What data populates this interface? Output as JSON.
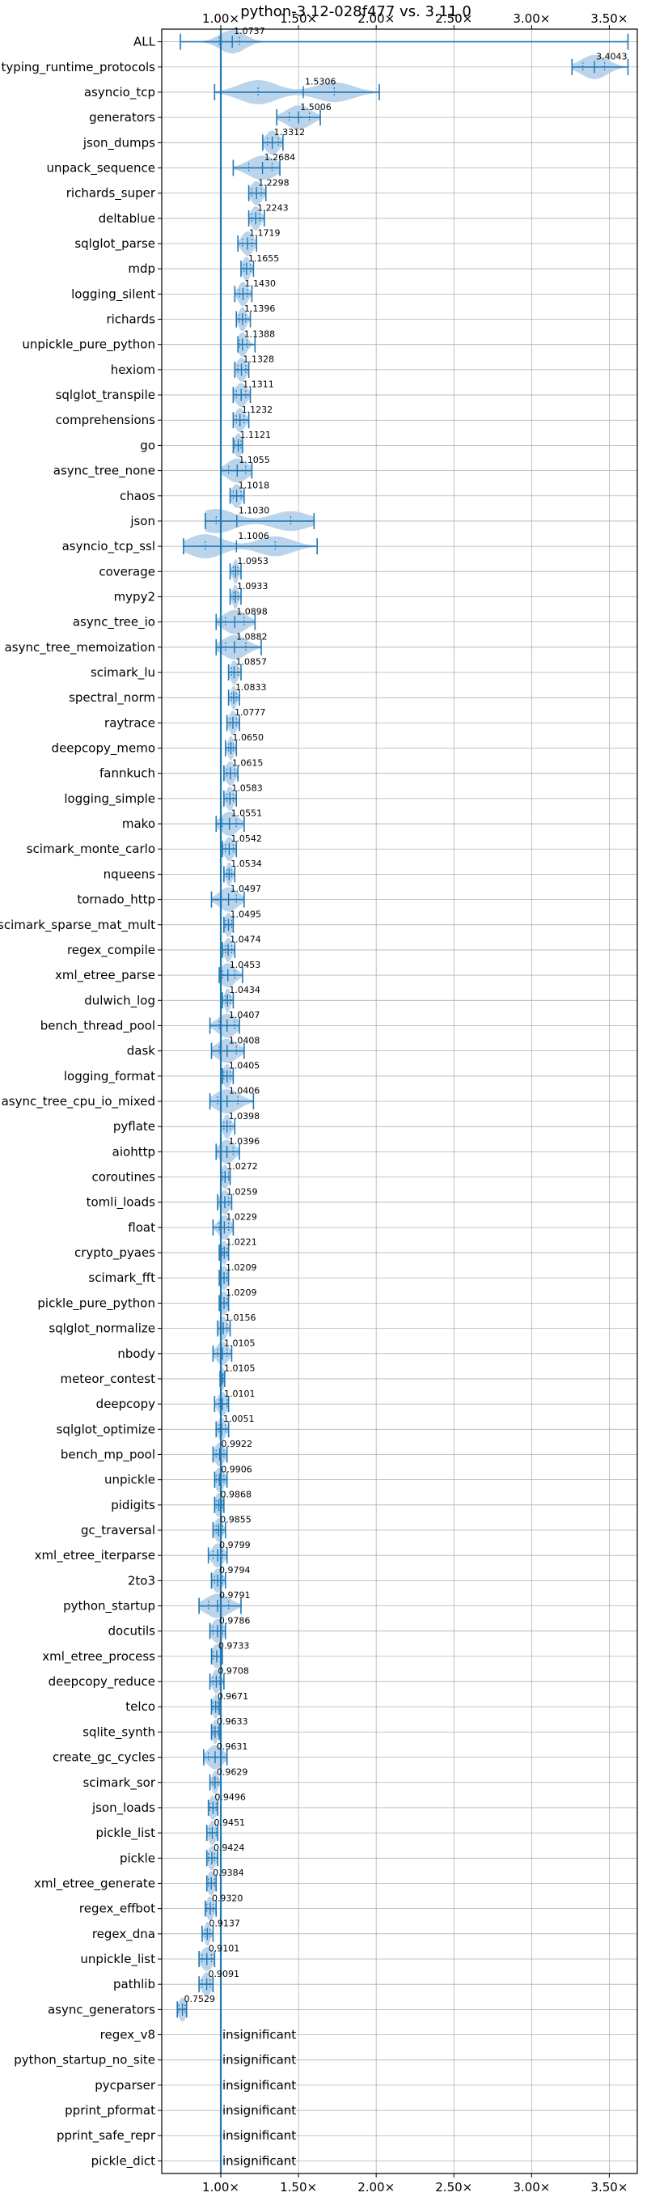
{
  "chart_data": {
    "type": "violin",
    "title": "python-3.12-028f477 vs. 3.11.0",
    "xlim": [
      0.62,
      3.68
    ],
    "x_ticks": [
      1.0,
      1.5,
      2.0,
      2.5,
      3.0,
      3.5
    ],
    "x_tick_labels": [
      "1.00×",
      "1.50×",
      "2.00×",
      "2.50×",
      "3.00×",
      "3.50×"
    ],
    "reference_x": 1.0,
    "grid": true,
    "insignificant_text": "insignificant",
    "color": "#1f77b4",
    "fill_color": "#aecde8",
    "benchmarks": [
      {
        "name": "ALL",
        "value": 1.0737,
        "label": "1.0737",
        "min": 0.74,
        "max": 3.62,
        "q1": 0.99,
        "q3": 1.12,
        "spread": 0.1
      },
      {
        "name": "typing_runtime_protocols",
        "value": 3.4043,
        "label": "3.4043",
        "min": 3.26,
        "max": 3.62,
        "q1": 3.33,
        "q3": 3.47,
        "spread": 0.1
      },
      {
        "name": "asyncio_tcp",
        "value": 1.5306,
        "label": "1.5306",
        "min": 0.96,
        "max": 2.02,
        "q1": 1.24,
        "q3": 1.73,
        "spread": 0.28
      },
      {
        "name": "generators",
        "value": 1.5006,
        "label": "1.5006",
        "min": 1.36,
        "max": 1.64,
        "q1": 1.44,
        "q3": 1.57,
        "spread": 0.1
      },
      {
        "name": "json_dumps",
        "value": 1.3312,
        "label": "1.3312",
        "min": 1.27,
        "max": 1.4,
        "q1": 1.3,
        "q3": 1.37,
        "spread": 0.06
      },
      {
        "name": "unpack_sequence",
        "value": 1.2684,
        "label": "1.2684",
        "min": 1.08,
        "max": 1.38,
        "q1": 1.18,
        "q3": 1.33,
        "spread": 0.12
      },
      {
        "name": "richards_super",
        "value": 1.2298,
        "label": "1.2298",
        "min": 1.18,
        "max": 1.29,
        "q1": 1.2,
        "q3": 1.26,
        "spread": 0.05
      },
      {
        "name": "deltablue",
        "value": 1.2243,
        "label": "1.2243",
        "min": 1.18,
        "max": 1.28,
        "q1": 1.2,
        "q3": 1.25,
        "spread": 0.05
      },
      {
        "name": "sqlglot_parse",
        "value": 1.1719,
        "label": "1.1719",
        "min": 1.11,
        "max": 1.23,
        "q1": 1.14,
        "q3": 1.2,
        "spread": 0.05
      },
      {
        "name": "mdp",
        "value": 1.1655,
        "label": "1.1655",
        "min": 1.13,
        "max": 1.21,
        "q1": 1.15,
        "q3": 1.19,
        "spread": 0.04
      },
      {
        "name": "logging_silent",
        "value": 1.143,
        "label": "1.1430",
        "min": 1.09,
        "max": 1.2,
        "q1": 1.12,
        "q3": 1.17,
        "spread": 0.05
      },
      {
        "name": "richards",
        "value": 1.1396,
        "label": "1.1396",
        "min": 1.1,
        "max": 1.19,
        "q1": 1.12,
        "q3": 1.16,
        "spread": 0.04
      },
      {
        "name": "unpickle_pure_python",
        "value": 1.1388,
        "label": "1.1388",
        "min": 1.11,
        "max": 1.22,
        "q1": 1.12,
        "q3": 1.17,
        "spread": 0.04
      },
      {
        "name": "hexiom",
        "value": 1.1328,
        "label": "1.1328",
        "min": 1.09,
        "max": 1.18,
        "q1": 1.11,
        "q3": 1.16,
        "spread": 0.04
      },
      {
        "name": "sqlglot_transpile",
        "value": 1.1311,
        "label": "1.1311",
        "min": 1.08,
        "max": 1.19,
        "q1": 1.1,
        "q3": 1.16,
        "spread": 0.05
      },
      {
        "name": "comprehensions",
        "value": 1.1232,
        "label": "1.1232",
        "min": 1.08,
        "max": 1.18,
        "q1": 1.1,
        "q3": 1.15,
        "spread": 0.04
      },
      {
        "name": "go",
        "value": 1.1121,
        "label": "1.1121",
        "min": 1.08,
        "max": 1.14,
        "q1": 1.09,
        "q3": 1.13,
        "spread": 0.03
      },
      {
        "name": "async_tree_none",
        "value": 1.1055,
        "label": "1.1055",
        "min": 1.0,
        "max": 1.2,
        "q1": 1.05,
        "q3": 1.16,
        "spread": 0.08
      },
      {
        "name": "chaos",
        "value": 1.1018,
        "label": "1.1018",
        "min": 1.06,
        "max": 1.15,
        "q1": 1.08,
        "q3": 1.13,
        "spread": 0.04
      },
      {
        "name": "json",
        "value": 1.103,
        "label": "1.1030",
        "min": 0.9,
        "max": 1.6,
        "q1": 0.97,
        "q3": 1.45,
        "spread": 0.14
      },
      {
        "name": "asyncio_tcp_ssl",
        "value": 1.1006,
        "label": "1.1006",
        "min": 0.76,
        "max": 1.62,
        "q1": 0.9,
        "q3": 1.35,
        "spread": 0.22
      },
      {
        "name": "coverage",
        "value": 1.0953,
        "label": "1.0953",
        "min": 1.06,
        "max": 1.13,
        "q1": 1.08,
        "q3": 1.11,
        "spread": 0.03
      },
      {
        "name": "mypy2",
        "value": 1.0933,
        "label": "1.0933",
        "min": 1.06,
        "max": 1.13,
        "q1": 1.08,
        "q3": 1.11,
        "spread": 0.03
      },
      {
        "name": "async_tree_io",
        "value": 1.0898,
        "label": "1.0898",
        "min": 0.97,
        "max": 1.22,
        "q1": 1.03,
        "q3": 1.15,
        "spread": 0.08
      },
      {
        "name": "async_tree_memoization",
        "value": 1.0882,
        "label": "1.0882",
        "min": 0.97,
        "max": 1.26,
        "q1": 1.03,
        "q3": 1.16,
        "spread": 0.09
      },
      {
        "name": "scimark_lu",
        "value": 1.0857,
        "label": "1.0857",
        "min": 1.05,
        "max": 1.13,
        "q1": 1.07,
        "q3": 1.11,
        "spread": 0.03
      },
      {
        "name": "spectral_norm",
        "value": 1.0833,
        "label": "1.0833",
        "min": 1.05,
        "max": 1.12,
        "q1": 1.07,
        "q3": 1.1,
        "spread": 0.03
      },
      {
        "name": "raytrace",
        "value": 1.0777,
        "label": "1.0777",
        "min": 1.04,
        "max": 1.12,
        "q1": 1.06,
        "q3": 1.1,
        "spread": 0.03
      },
      {
        "name": "deepcopy_memo",
        "value": 1.065,
        "label": "1.0650",
        "min": 1.03,
        "max": 1.1,
        "q1": 1.05,
        "q3": 1.08,
        "spread": 0.03
      },
      {
        "name": "fannkuch",
        "value": 1.0615,
        "label": "1.0615",
        "min": 1.02,
        "max": 1.11,
        "q1": 1.04,
        "q3": 1.09,
        "spread": 0.03
      },
      {
        "name": "logging_simple",
        "value": 1.0583,
        "label": "1.0583",
        "min": 1.02,
        "max": 1.1,
        "q1": 1.04,
        "q3": 1.08,
        "spread": 0.03
      },
      {
        "name": "mako",
        "value": 1.0551,
        "label": "1.0551",
        "min": 0.97,
        "max": 1.15,
        "q1": 1.01,
        "q3": 1.1,
        "spread": 0.06
      },
      {
        "name": "scimark_monte_carlo",
        "value": 1.0542,
        "label": "1.0542",
        "min": 1.01,
        "max": 1.1,
        "q1": 1.03,
        "q3": 1.08,
        "spread": 0.04
      },
      {
        "name": "nqueens",
        "value": 1.0534,
        "label": "1.0534",
        "min": 1.02,
        "max": 1.09,
        "q1": 1.04,
        "q3": 1.07,
        "spread": 0.03
      },
      {
        "name": "tornado_http",
        "value": 1.0497,
        "label": "1.0497",
        "min": 0.94,
        "max": 1.15,
        "q1": 1.0,
        "q3": 1.1,
        "spread": 0.06
      },
      {
        "name": "scimark_sparse_mat_mult",
        "value": 1.0495,
        "label": "1.0495",
        "min": 1.02,
        "max": 1.08,
        "q1": 1.03,
        "q3": 1.07,
        "spread": 0.03
      },
      {
        "name": "regex_compile",
        "value": 1.0474,
        "label": "1.0474",
        "min": 1.01,
        "max": 1.09,
        "q1": 1.03,
        "q3": 1.07,
        "spread": 0.03
      },
      {
        "name": "xml_etree_parse",
        "value": 1.0453,
        "label": "1.0453",
        "min": 0.99,
        "max": 1.14,
        "q1": 1.01,
        "q3": 1.09,
        "spread": 0.05
      },
      {
        "name": "dulwich_log",
        "value": 1.0434,
        "label": "1.0434",
        "min": 1.01,
        "max": 1.08,
        "q1": 1.03,
        "q3": 1.06,
        "spread": 0.03
      },
      {
        "name": "bench_thread_pool",
        "value": 1.0407,
        "label": "1.0407",
        "min": 0.93,
        "max": 1.12,
        "q1": 0.99,
        "q3": 1.09,
        "spread": 0.05
      },
      {
        "name": "dask",
        "value": 1.0408,
        "label": "1.0408",
        "min": 0.94,
        "max": 1.15,
        "q1": 0.99,
        "q3": 1.1,
        "spread": 0.06
      },
      {
        "name": "logging_format",
        "value": 1.0405,
        "label": "1.0405",
        "min": 1.01,
        "max": 1.08,
        "q1": 1.02,
        "q3": 1.06,
        "spread": 0.03
      },
      {
        "name": "async_tree_cpu_io_mixed",
        "value": 1.0406,
        "label": "1.0406",
        "min": 0.93,
        "max": 1.21,
        "q1": 0.98,
        "q3": 1.11,
        "spread": 0.07
      },
      {
        "name": "pyflate",
        "value": 1.0398,
        "label": "1.0398",
        "min": 1.0,
        "max": 1.09,
        "q1": 1.02,
        "q3": 1.06,
        "spread": 0.04
      },
      {
        "name": "aiohttp",
        "value": 1.0396,
        "label": "1.0396",
        "min": 0.97,
        "max": 1.12,
        "q1": 1.0,
        "q3": 1.08,
        "spread": 0.05
      },
      {
        "name": "coroutines",
        "value": 1.0272,
        "label": "1.0272",
        "min": 1.0,
        "max": 1.06,
        "q1": 1.01,
        "q3": 1.05,
        "spread": 0.03
      },
      {
        "name": "tomli_loads",
        "value": 1.0259,
        "label": "1.0259",
        "min": 0.98,
        "max": 1.07,
        "q1": 1.0,
        "q3": 1.05,
        "spread": 0.04
      },
      {
        "name": "float",
        "value": 1.0229,
        "label": "1.0229",
        "min": 0.95,
        "max": 1.08,
        "q1": 0.99,
        "q3": 1.05,
        "spread": 0.04
      },
      {
        "name": "crypto_pyaes",
        "value": 1.0221,
        "label": "1.0221",
        "min": 0.99,
        "max": 1.05,
        "q1": 1.01,
        "q3": 1.04,
        "spread": 0.02
      },
      {
        "name": "scimark_fft",
        "value": 1.0209,
        "label": "1.0209",
        "min": 0.99,
        "max": 1.05,
        "q1": 1.0,
        "q3": 1.04,
        "spread": 0.02
      },
      {
        "name": "pickle_pure_python",
        "value": 1.0209,
        "label": "1.0209",
        "min": 0.99,
        "max": 1.05,
        "q1": 1.0,
        "q3": 1.04,
        "spread": 0.02
      },
      {
        "name": "sqlglot_normalize",
        "value": 1.0156,
        "label": "1.0156",
        "min": 0.98,
        "max": 1.06,
        "q1": 1.0,
        "q3": 1.04,
        "spread": 0.03
      },
      {
        "name": "nbody",
        "value": 1.0105,
        "label": "1.0105",
        "min": 0.95,
        "max": 1.07,
        "q1": 0.98,
        "q3": 1.04,
        "spread": 0.04
      },
      {
        "name": "meteor_contest",
        "value": 1.0105,
        "label": "1.0105",
        "min": 0.995,
        "max": 1.025,
        "q1": 1.0,
        "q3": 1.02,
        "spread": 0.015
      },
      {
        "name": "deepcopy",
        "value": 1.0101,
        "label": "1.0101",
        "min": 0.96,
        "max": 1.05,
        "q1": 0.99,
        "q3": 1.04,
        "spread": 0.03
      },
      {
        "name": "sqlglot_optimize",
        "value": 1.0051,
        "label": "1.0051",
        "min": 0.97,
        "max": 1.05,
        "q1": 0.99,
        "q3": 1.03,
        "spread": 0.03
      },
      {
        "name": "bench_mp_pool",
        "value": 0.9922,
        "label": "0.9922",
        "min": 0.95,
        "max": 1.04,
        "q1": 0.97,
        "q3": 1.02,
        "spread": 0.03
      },
      {
        "name": "unpickle",
        "value": 0.9906,
        "label": "0.9906",
        "min": 0.96,
        "max": 1.04,
        "q1": 0.97,
        "q3": 1.02,
        "spread": 0.03
      },
      {
        "name": "pidigits",
        "value": 0.9868,
        "label": "0.9868",
        "min": 0.96,
        "max": 1.02,
        "q1": 0.97,
        "q3": 1.01,
        "spread": 0.02
      },
      {
        "name": "gc_traversal",
        "value": 0.9855,
        "label": "0.9855",
        "min": 0.95,
        "max": 1.03,
        "q1": 0.97,
        "q3": 1.01,
        "spread": 0.03
      },
      {
        "name": "xml_etree_iterparse",
        "value": 0.9799,
        "label": "0.9799",
        "min": 0.92,
        "max": 1.04,
        "q1": 0.95,
        "q3": 1.01,
        "spread": 0.04
      },
      {
        "name": "2to3",
        "value": 0.9794,
        "label": "0.9794",
        "min": 0.94,
        "max": 1.03,
        "q1": 0.96,
        "q3": 1.01,
        "spread": 0.03
      },
      {
        "name": "python_startup",
        "value": 0.9791,
        "label": "0.9791",
        "min": 0.86,
        "max": 1.13,
        "q1": 0.92,
        "q3": 1.05,
        "spread": 0.06
      },
      {
        "name": "docutils",
        "value": 0.9786,
        "label": "0.9786",
        "min": 0.93,
        "max": 1.03,
        "q1": 0.95,
        "q3": 1.01,
        "spread": 0.03
      },
      {
        "name": "xml_etree_process",
        "value": 0.9733,
        "label": "0.9733",
        "min": 0.94,
        "max": 1.01,
        "q1": 0.95,
        "q3": 1.0,
        "spread": 0.03
      },
      {
        "name": "deepcopy_reduce",
        "value": 0.9708,
        "label": "0.9708",
        "min": 0.93,
        "max": 1.02,
        "q1": 0.95,
        "q3": 0.99,
        "spread": 0.03
      },
      {
        "name": "telco",
        "value": 0.9671,
        "label": "0.9671",
        "min": 0.94,
        "max": 0.99,
        "q1": 0.95,
        "q3": 0.98,
        "spread": 0.02
      },
      {
        "name": "sqlite_synth",
        "value": 0.9633,
        "label": "0.9633",
        "min": 0.94,
        "max": 0.99,
        "q1": 0.95,
        "q3": 0.98,
        "spread": 0.02
      },
      {
        "name": "create_gc_cycles",
        "value": 0.9631,
        "label": "0.9631",
        "min": 0.89,
        "max": 1.04,
        "q1": 0.92,
        "q3": 1.0,
        "spread": 0.05
      },
      {
        "name": "scimark_sor",
        "value": 0.9629,
        "label": "0.9629",
        "min": 0.93,
        "max": 1.0,
        "q1": 0.95,
        "q3": 0.98,
        "spread": 0.03
      },
      {
        "name": "json_loads",
        "value": 0.9496,
        "label": "0.9496",
        "min": 0.92,
        "max": 0.98,
        "q1": 0.93,
        "q3": 0.97,
        "spread": 0.02
      },
      {
        "name": "pickle_list",
        "value": 0.9451,
        "label": "0.9451",
        "min": 0.91,
        "max": 0.98,
        "q1": 0.93,
        "q3": 0.97,
        "spread": 0.02
      },
      {
        "name": "pickle",
        "value": 0.9424,
        "label": "0.9424",
        "min": 0.91,
        "max": 0.98,
        "q1": 0.92,
        "q3": 0.96,
        "spread": 0.02
      },
      {
        "name": "xml_etree_generate",
        "value": 0.9384,
        "label": "0.9384",
        "min": 0.91,
        "max": 0.97,
        "q1": 0.92,
        "q3": 0.96,
        "spread": 0.02
      },
      {
        "name": "regex_effbot",
        "value": 0.932,
        "label": "0.9320",
        "min": 0.9,
        "max": 0.97,
        "q1": 0.91,
        "q3": 0.95,
        "spread": 0.02
      },
      {
        "name": "regex_dna",
        "value": 0.9137,
        "label": "0.9137",
        "min": 0.88,
        "max": 0.95,
        "q1": 0.9,
        "q3": 0.93,
        "spread": 0.02
      },
      {
        "name": "unpickle_list",
        "value": 0.9101,
        "label": "0.9101",
        "min": 0.86,
        "max": 0.96,
        "q1": 0.88,
        "q3": 0.94,
        "spread": 0.03
      },
      {
        "name": "pathlib",
        "value": 0.9091,
        "label": "0.9091",
        "min": 0.86,
        "max": 0.95,
        "q1": 0.88,
        "q3": 0.93,
        "spread": 0.02
      },
      {
        "name": "async_generators",
        "value": 0.7529,
        "label": "0.7529",
        "min": 0.72,
        "max": 0.78,
        "q1": 0.73,
        "q3": 0.77,
        "spread": 0.02
      },
      {
        "name": "regex_v8",
        "insignificant": true
      },
      {
        "name": "python_startup_no_site",
        "insignificant": true
      },
      {
        "name": "pycparser",
        "insignificant": true
      },
      {
        "name": "pprint_pformat",
        "insignificant": true
      },
      {
        "name": "pprint_safe_repr",
        "insignificant": true
      },
      {
        "name": "pickle_dict",
        "insignificant": true
      }
    ]
  }
}
